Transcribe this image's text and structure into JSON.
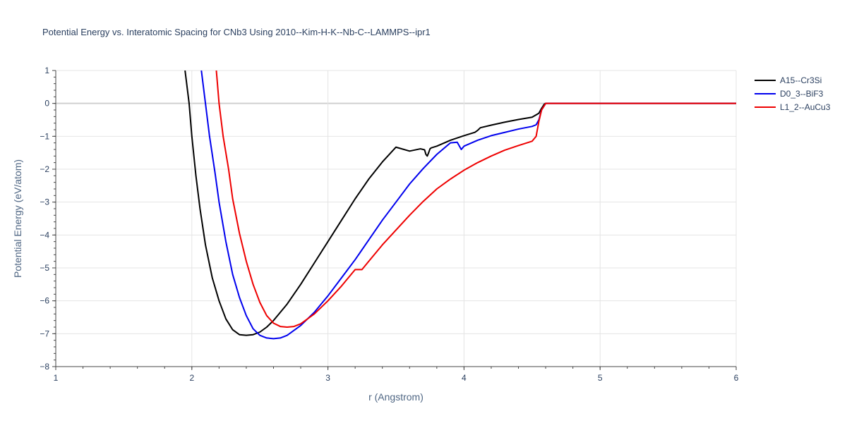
{
  "chart_data": {
    "type": "line",
    "title": "Potential Energy vs. Interatomic Spacing for CNb3 Using 2010--Kim-H-K--Nb-C--LAMMPS--ipr1",
    "xlabel": "r (Angstrom)",
    "ylabel": "Potential Energy (eV/atom)",
    "xlim": [
      1,
      6
    ],
    "ylim": [
      -8,
      1
    ],
    "xticks": [
      1,
      2,
      3,
      4,
      5,
      6
    ],
    "yticks": [
      1,
      0,
      -1,
      -2,
      -3,
      -4,
      -5,
      -6,
      -7,
      -8
    ],
    "grid": true,
    "legend_position": "top-right",
    "series": [
      {
        "name": "A15--Cr3Si",
        "color": "#000000",
        "x": [
          1.95,
          1.98,
          2.0,
          2.03,
          2.06,
          2.1,
          2.15,
          2.2,
          2.25,
          2.3,
          2.35,
          2.4,
          2.45,
          2.5,
          2.55,
          2.6,
          2.7,
          2.8,
          2.9,
          3.0,
          3.1,
          3.2,
          3.3,
          3.4,
          3.5,
          3.6,
          3.68,
          3.71,
          3.72,
          3.73,
          3.74,
          3.75,
          3.76,
          3.8,
          3.9,
          4.0,
          4.08,
          4.1,
          4.12,
          4.2,
          4.3,
          4.4,
          4.5,
          4.55,
          4.57,
          4.59,
          4.6,
          4.7,
          5.0,
          5.5,
          6.0
        ],
        "y": [
          1.0,
          0.0,
          -1.0,
          -2.2,
          -3.2,
          -4.3,
          -5.3,
          -6.0,
          -6.55,
          -6.88,
          -7.03,
          -7.05,
          -7.03,
          -6.95,
          -6.8,
          -6.6,
          -6.1,
          -5.5,
          -4.85,
          -4.2,
          -3.55,
          -2.9,
          -2.3,
          -1.78,
          -1.33,
          -1.45,
          -1.38,
          -1.41,
          -1.55,
          -1.6,
          -1.5,
          -1.38,
          -1.35,
          -1.3,
          -1.12,
          -0.98,
          -0.88,
          -0.82,
          -0.74,
          -0.66,
          -0.57,
          -0.49,
          -0.42,
          -0.3,
          -0.15,
          -0.02,
          0.0,
          0.0,
          0.0,
          0.0,
          0.0
        ]
      },
      {
        "name": "D0_3--BiF3",
        "color": "#0000ee",
        "x": [
          2.07,
          2.1,
          2.13,
          2.17,
          2.2,
          2.25,
          2.3,
          2.35,
          2.4,
          2.45,
          2.5,
          2.55,
          2.6,
          2.65,
          2.7,
          2.8,
          2.9,
          3.0,
          3.1,
          3.2,
          3.3,
          3.4,
          3.5,
          3.6,
          3.7,
          3.8,
          3.9,
          3.95,
          3.98,
          4.0,
          4.1,
          4.2,
          4.3,
          4.4,
          4.5,
          4.53,
          4.55,
          4.57,
          4.6,
          4.7,
          5.0,
          5.5,
          6.0
        ],
        "y": [
          1.0,
          0.0,
          -1.0,
          -2.1,
          -3.0,
          -4.2,
          -5.2,
          -5.9,
          -6.45,
          -6.85,
          -7.05,
          -7.13,
          -7.15,
          -7.13,
          -7.05,
          -6.75,
          -6.35,
          -5.85,
          -5.3,
          -4.75,
          -4.15,
          -3.55,
          -3.0,
          -2.45,
          -1.98,
          -1.55,
          -1.2,
          -1.18,
          -1.4,
          -1.3,
          -1.12,
          -0.98,
          -0.88,
          -0.78,
          -0.7,
          -0.65,
          -0.5,
          -0.2,
          0.0,
          0.0,
          0.0,
          0.0,
          0.0
        ]
      },
      {
        "name": "L1_2--AuCu3",
        "color": "#ee0000",
        "x": [
          2.18,
          2.2,
          2.23,
          2.27,
          2.3,
          2.35,
          2.4,
          2.45,
          2.5,
          2.55,
          2.6,
          2.65,
          2.7,
          2.75,
          2.8,
          2.9,
          3.0,
          3.1,
          3.2,
          3.25,
          3.3,
          3.4,
          3.5,
          3.6,
          3.7,
          3.8,
          3.9,
          4.0,
          4.1,
          4.2,
          4.3,
          4.4,
          4.5,
          4.53,
          4.55,
          4.57,
          4.6,
          4.7,
          5.0,
          5.5,
          6.0
        ],
        "y": [
          1.0,
          0.0,
          -1.0,
          -2.0,
          -2.9,
          -3.95,
          -4.8,
          -5.5,
          -6.05,
          -6.45,
          -6.68,
          -6.78,
          -6.8,
          -6.78,
          -6.7,
          -6.4,
          -6.0,
          -5.55,
          -5.05,
          -5.05,
          -4.8,
          -4.3,
          -3.85,
          -3.4,
          -2.98,
          -2.6,
          -2.3,
          -2.03,
          -1.8,
          -1.6,
          -1.42,
          -1.28,
          -1.15,
          -1.0,
          -0.55,
          -0.2,
          0.0,
          0.0,
          0.0,
          0.0,
          0.0
        ]
      }
    ]
  }
}
